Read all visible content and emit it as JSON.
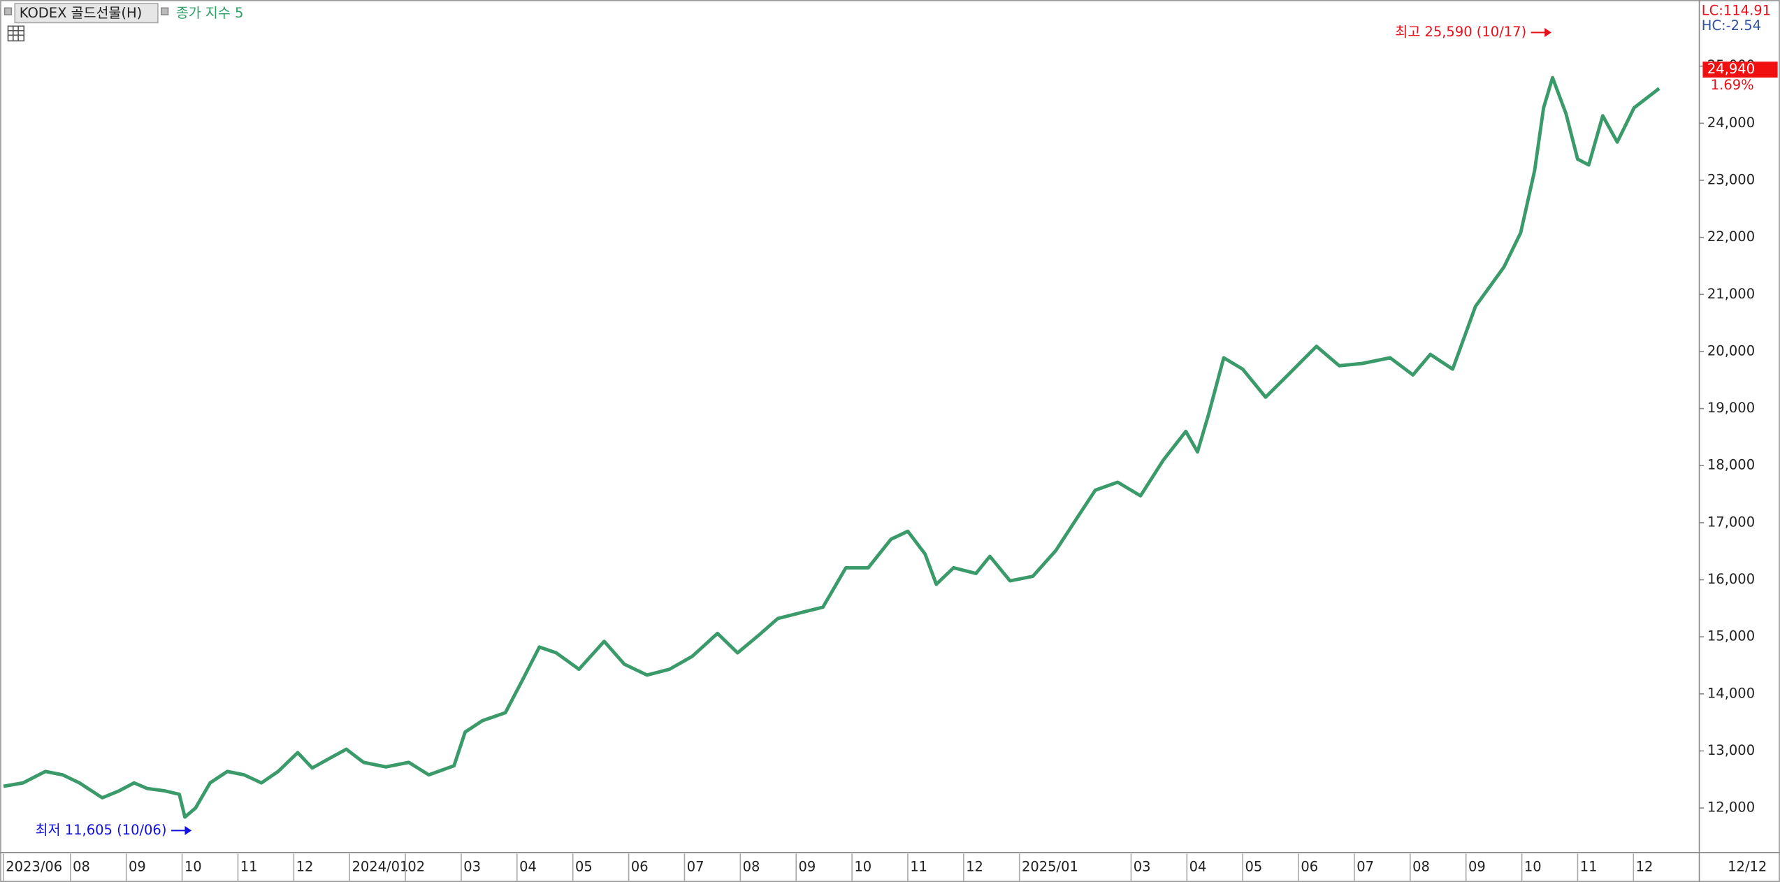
{
  "header": {
    "lc": "LC:114.91",
    "hc": "HC:-2.54"
  },
  "chart_data": {
    "type": "line",
    "title": "KODEX 골드선물(H)",
    "x": [
      0.8,
      1.15,
      1.55,
      1.86,
      2.16,
      2.57,
      2.87,
      3.14,
      3.38,
      3.69,
      3.95,
      4.05,
      4.24,
      4.5,
      4.81,
      5.11,
      5.42,
      5.72,
      6.07,
      6.33,
      6.64,
      6.94,
      7.25,
      7.65,
      8.06,
      8.42,
      8.87,
      9.07,
      9.38,
      9.79,
      10.09,
      10.4,
      10.7,
      11.11,
      11.56,
      11.92,
      12.33,
      12.73,
      13.14,
      13.59,
      13.95,
      14.32,
      14.67,
      15.07,
      15.48,
      15.89,
      16.29,
      16.7,
      17.0,
      17.31,
      17.51,
      17.82,
      18.22,
      18.47,
      18.83,
      19.24,
      19.65,
      20.05,
      20.36,
      20.76,
      21.17,
      21.58,
      21.98,
      22.19,
      22.39,
      22.66,
      23.0,
      23.41,
      23.81,
      24.32,
      24.73,
      25.14,
      25.64,
      26.05,
      26.36,
      26.76,
      27.17,
      27.68,
      27.98,
      28.23,
      28.39,
      28.55,
      28.79,
      29.0,
      29.2,
      29.45,
      29.71,
      30.01,
      30.46
    ],
    "series": [
      {
        "name": "종가 지수 5",
        "color": "#3a9a6a",
        "values": [
          12380,
          12440,
          12640,
          12580,
          12440,
          12180,
          12300,
          12440,
          12340,
          12300,
          12240,
          11840,
          12000,
          12440,
          12640,
          12580,
          12440,
          12640,
          12970,
          12700,
          12870,
          13030,
          12800,
          12720,
          12800,
          12580,
          12740,
          13330,
          13530,
          13670,
          14230,
          14820,
          14720,
          14430,
          14920,
          14520,
          14330,
          14430,
          14660,
          15060,
          14720,
          15020,
          15320,
          15420,
          15520,
          16210,
          16210,
          16710,
          16850,
          16450,
          15920,
          16210,
          16110,
          16410,
          15980,
          16060,
          16510,
          17110,
          17570,
          17710,
          17470,
          18100,
          18600,
          18240,
          18900,
          19890,
          19690,
          19200,
          19590,
          20090,
          19750,
          19790,
          19890,
          19590,
          19950,
          19690,
          20790,
          21480,
          22080,
          23170,
          24270,
          24800,
          24170,
          23370,
          23270,
          24130,
          23670,
          24270,
          24610
        ]
      }
    ],
    "xlim": [
      0.8,
      31.2
    ],
    "xticks": [
      {
        "value": 0.8,
        "label": "2023/06"
      },
      {
        "value": 2,
        "label": "08"
      },
      {
        "value": 3,
        "label": "09"
      },
      {
        "value": 4,
        "label": "10"
      },
      {
        "value": 5,
        "label": "11"
      },
      {
        "value": 6,
        "label": "12"
      },
      {
        "value": 7,
        "label": "2024/01"
      },
      {
        "value": 8,
        "label": "02"
      },
      {
        "value": 9,
        "label": "03"
      },
      {
        "value": 10,
        "label": "04"
      },
      {
        "value": 11,
        "label": "05"
      },
      {
        "value": 12,
        "label": "06"
      },
      {
        "value": 13,
        "label": "07"
      },
      {
        "value": 14,
        "label": "08"
      },
      {
        "value": 15,
        "label": "09"
      },
      {
        "value": 16,
        "label": "10"
      },
      {
        "value": 17,
        "label": "11"
      },
      {
        "value": 18,
        "label": "12"
      },
      {
        "value": 19,
        "label": "2025/01"
      },
      {
        "value": 21,
        "label": "03"
      },
      {
        "value": 22,
        "label": "04"
      },
      {
        "value": 23,
        "label": "05"
      },
      {
        "value": 24,
        "label": "06"
      },
      {
        "value": 25,
        "label": "07"
      },
      {
        "value": 26,
        "label": "08"
      },
      {
        "value": 27,
        "label": "09"
      },
      {
        "value": 28,
        "label": "10"
      },
      {
        "value": 29,
        "label": "11"
      },
      {
        "value": 30,
        "label": "12"
      }
    ],
    "last_date": "12/12",
    "ylim": [
      11280,
      26100
    ],
    "yticks": [
      {
        "value": 12000,
        "label": "12,000"
      },
      {
        "value": 13000,
        "label": "13,000"
      },
      {
        "value": 14000,
        "label": "14,000"
      },
      {
        "value": 15000,
        "label": "15,000"
      },
      {
        "value": 16000,
        "label": "16,000"
      },
      {
        "value": 17000,
        "label": "17,000"
      },
      {
        "value": 18000,
        "label": "18,000"
      },
      {
        "value": 19000,
        "label": "19,000"
      },
      {
        "value": 20000,
        "label": "20,000"
      },
      {
        "value": 21000,
        "label": "21,000"
      },
      {
        "value": 22000,
        "label": "22,000"
      },
      {
        "value": 23000,
        "label": "23,000"
      },
      {
        "value": 24000,
        "label": "24,000"
      },
      {
        "value": 25000,
        "label": "25,000"
      }
    ],
    "annotations": [
      {
        "label": "최고 25,590 (10/17)",
        "value": 25590,
        "x": 28.53,
        "color": "#e8101a"
      },
      {
        "label": "최저 11,605 (10/06)",
        "value": 11605,
        "x": 4.17,
        "color": "#1010e0"
      }
    ],
    "last_price": {
      "value": 24940,
      "label": "24,940"
    },
    "change": {
      "value": 1.69,
      "label": "1.69%"
    }
  }
}
